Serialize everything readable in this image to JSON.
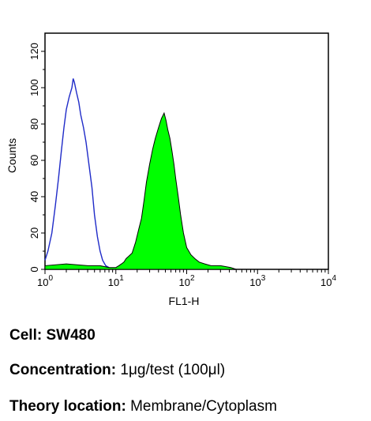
{
  "chart_data": {
    "type": "histogram",
    "y_label": "Counts",
    "x_label": "FL1-H",
    "y_range": [
      0,
      130
    ],
    "y_ticks": [
      "0",
      "20",
      "40",
      "60",
      "80",
      "100",
      "120"
    ],
    "x_scale": "log",
    "x_range": [
      1,
      10000
    ],
    "x_ticks": [
      {
        "base": "10",
        "exp": "0"
      },
      {
        "base": "10",
        "exp": "1"
      },
      {
        "base": "10",
        "exp": "2"
      },
      {
        "base": "10",
        "exp": "3"
      },
      {
        "base": "10",
        "exp": "4"
      }
    ],
    "series": [
      {
        "style": "outline",
        "color": "#1f2bc8",
        "points": [
          [
            1.0,
            5
          ],
          [
            1.1,
            10
          ],
          [
            1.25,
            20
          ],
          [
            1.4,
            35
          ],
          [
            1.55,
            50
          ],
          [
            1.7,
            65
          ],
          [
            1.85,
            78
          ],
          [
            2.0,
            88
          ],
          [
            2.2,
            95
          ],
          [
            2.4,
            100
          ],
          [
            2.5,
            105
          ],
          [
            2.6,
            103
          ],
          [
            2.8,
            97
          ],
          [
            3.0,
            92
          ],
          [
            3.2,
            85
          ],
          [
            3.5,
            78
          ],
          [
            3.8,
            70
          ],
          [
            4.2,
            57
          ],
          [
            4.6,
            45
          ],
          [
            5.0,
            30
          ],
          [
            5.5,
            18
          ],
          [
            6.0,
            10
          ],
          [
            6.5,
            5
          ],
          [
            7.2,
            2
          ],
          [
            8.0,
            1
          ],
          [
            9.0,
            0
          ]
        ]
      },
      {
        "style": "filled",
        "color": "#00ff00",
        "outline_color": "#000000",
        "points": [
          [
            1.0,
            2
          ],
          [
            2,
            3
          ],
          [
            4,
            2
          ],
          [
            6,
            2
          ],
          [
            8,
            1
          ],
          [
            10,
            1
          ],
          [
            11,
            2
          ],
          [
            12,
            3
          ],
          [
            13,
            4
          ],
          [
            14,
            6
          ],
          [
            15,
            7
          ],
          [
            17,
            9
          ],
          [
            19,
            15
          ],
          [
            21,
            22
          ],
          [
            23,
            28
          ],
          [
            25,
            38
          ],
          [
            27,
            48
          ],
          [
            30,
            58
          ],
          [
            33,
            66
          ],
          [
            36,
            72
          ],
          [
            40,
            78
          ],
          [
            44,
            83
          ],
          [
            48,
            86
          ],
          [
            51,
            82
          ],
          [
            54,
            77
          ],
          [
            58,
            72
          ],
          [
            62,
            65
          ],
          [
            66,
            58
          ],
          [
            70,
            50
          ],
          [
            76,
            40
          ],
          [
            82,
            30
          ],
          [
            90,
            20
          ],
          [
            100,
            12
          ],
          [
            115,
            8
          ],
          [
            130,
            6
          ],
          [
            150,
            4
          ],
          [
            180,
            3
          ],
          [
            220,
            2
          ],
          [
            300,
            2
          ],
          [
            420,
            1
          ],
          [
            500,
            0
          ]
        ]
      }
    ]
  },
  "info": {
    "cell_label": "Cell:",
    "cell_value": "SW480",
    "conc_label": "Concentration:",
    "conc_value": "1μg/test (100μl)",
    "theory_label": "Theory location:",
    "theory_value": "Membrane/Cytoplasm"
  }
}
